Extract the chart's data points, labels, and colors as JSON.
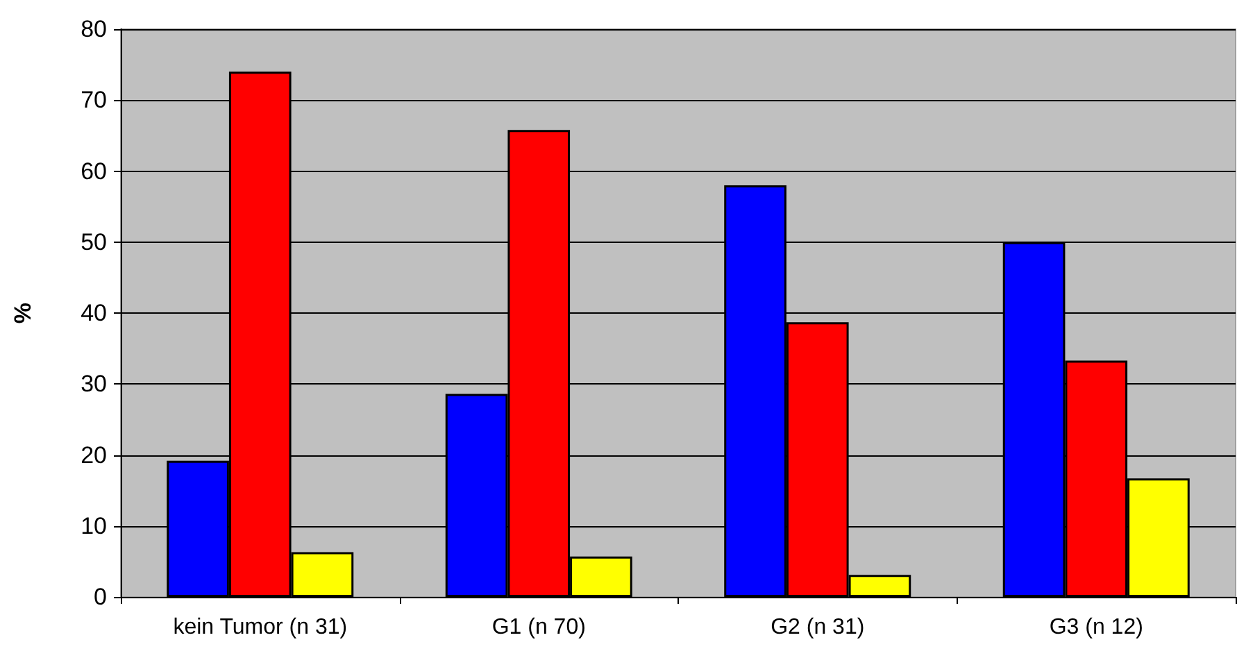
{
  "chart_data": {
    "type": "bar",
    "ylabel": "%",
    "categories": [
      "kein Tumor (n 31)",
      "G1 (n 70)",
      "G2 (n 31)",
      "G3 (n 12)"
    ],
    "series": [
      {
        "color": "#0000ff",
        "values": [
          19.2,
          28.6,
          58.0,
          50.0
        ]
      },
      {
        "color": "#ff0000",
        "values": [
          74.0,
          65.8,
          38.7,
          33.3
        ]
      },
      {
        "color": "#ffff00",
        "values": [
          6.3,
          5.7,
          3.1,
          16.7
        ]
      }
    ],
    "ylim": [
      0,
      80
    ],
    "yticks": [
      0,
      10,
      20,
      30,
      40,
      50,
      60,
      70,
      80
    ],
    "grid": "y"
  }
}
